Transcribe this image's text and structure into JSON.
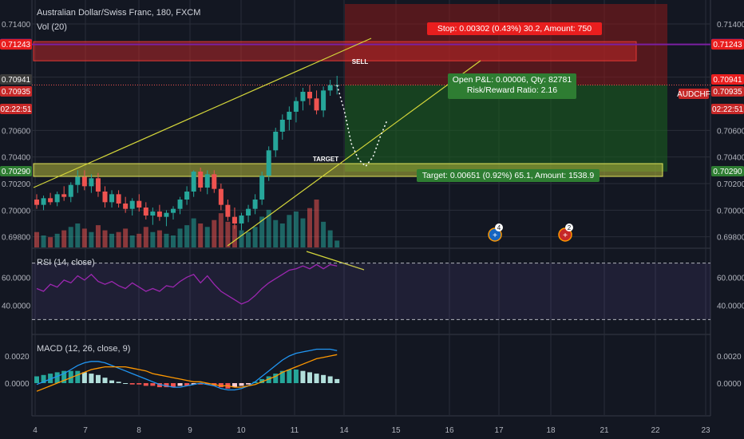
{
  "header": {
    "symbol_title": "Australian Dollar/Swiss Franc, 180, FXCM",
    "volume_label": "Vol (20)",
    "rsi_label": "RSI (14, close)",
    "macd_label": "MACD (12, 26, close, 9)"
  },
  "colors": {
    "bg": "#131722",
    "up": "#26a69a",
    "down": "#ef5350",
    "grid": "#2a2e39",
    "trendline": "#d4d63a",
    "stop_zone": "#8b1a1a",
    "profit_zone": "#1b5e20",
    "target_zone": "#b5b83a",
    "rsi_line": "#9c27b0",
    "macd_line": "#2196f3",
    "signal_line": "#ff9800",
    "purple_line": "#7b1fa2"
  },
  "annotations": {
    "stop_label": "Stop: 0.00302 (0.43%) 30.2, Amount: 750",
    "sell_label": "SELL",
    "target_zone_label": "TARGET",
    "pnl_line1": "Open P&L: 0.00006, Qty: 82781",
    "pnl_line2": "Risk/Reward Ratio: 2.16",
    "target_label": "Target: 0.00651 (0.92%) 65.1, Amount: 1538.9",
    "event_badge_1": "4",
    "event_badge_2": "2"
  },
  "price_scale": {
    "ticks_right": [
      "0.71400",
      "0.71000",
      "0.70600",
      "0.70400",
      "0.70200",
      "0.70000",
      "0.69800"
    ],
    "ticks_left": [
      "0.71400",
      "0.71000",
      "0.70600",
      "0.70400",
      "0.70200",
      "0.70000",
      "0.69800"
    ],
    "tags_right": [
      {
        "text": "0.71246",
        "price": 0.71246,
        "color": "#7b1fa2"
      },
      {
        "text": "0.71243",
        "price": 0.71243,
        "color": "#e91e1e"
      },
      {
        "text": "0.70941",
        "price": 0.70941,
        "color": "#e91e1e"
      },
      {
        "text": "0.70935",
        "price": 0.70935,
        "color": "#c62828"
      },
      {
        "text": "02:22:51",
        "price": 0.708,
        "color": "#c62828"
      },
      {
        "text": "0.70290",
        "price": 0.7029,
        "color": "#2e7d32"
      }
    ],
    "tags_left": [
      {
        "text": "0.71246",
        "price": 0.71246,
        "color": "#7b1fa2"
      },
      {
        "text": "0.71243",
        "price": 0.71243,
        "color": "#e91e1e"
      },
      {
        "text": "0.70941",
        "price": 0.70941,
        "color": "#3a3a3a"
      },
      {
        "text": "0.70935",
        "price": 0.70935,
        "color": "#c62828"
      },
      {
        "text": "02:22:51",
        "price": 0.708,
        "color": "#c62828"
      },
      {
        "text": "0.70290",
        "price": 0.7029,
        "color": "#2e7d32"
      }
    ],
    "symbol_tag": "AUDCHF"
  },
  "rsi_scale": [
    "60.0000",
    "40.0000"
  ],
  "macd_scale": [
    "0.0020",
    "0.0000"
  ],
  "x_axis": {
    "labels": [
      "4",
      "7",
      "8",
      "9",
      "10",
      "11",
      "14",
      "15",
      "16",
      "17",
      "18",
      "21",
      "22",
      "23"
    ]
  },
  "chart_data": {
    "type": "candlestick",
    "title": "Australian Dollar/Swiss Franc, 180, FXCM",
    "price_range": [
      0.6972,
      0.7155
    ],
    "key_levels": {
      "stop": 0.71243,
      "entry": 0.70941,
      "target": 0.7029,
      "purple_line": 0.71246
    },
    "candles": [
      [
        0.7008,
        0.7012,
        0.7001,
        0.7004
      ],
      [
        0.7004,
        0.7011,
        0.7,
        0.7009
      ],
      [
        0.7009,
        0.7013,
        0.7004,
        0.7006
      ],
      [
        0.7006,
        0.7014,
        0.7003,
        0.7012
      ],
      [
        0.7012,
        0.7018,
        0.7007,
        0.701
      ],
      [
        0.701,
        0.7021,
        0.7006,
        0.7019
      ],
      [
        0.7019,
        0.703,
        0.7013,
        0.7025
      ],
      [
        0.7025,
        0.703,
        0.7015,
        0.7018
      ],
      [
        0.7018,
        0.7027,
        0.7013,
        0.7024
      ],
      [
        0.7024,
        0.7028,
        0.701,
        0.7014
      ],
      [
        0.7014,
        0.7018,
        0.7002,
        0.7006
      ],
      [
        0.7006,
        0.7015,
        0.7002,
        0.7012
      ],
      [
        0.7012,
        0.7015,
        0.7002,
        0.7005
      ],
      [
        0.7005,
        0.701,
        0.6998,
        0.7001
      ],
      [
        0.7001,
        0.7009,
        0.6996,
        0.7007
      ],
      [
        0.7007,
        0.7012,
        0.6999,
        0.7002
      ],
      [
        0.7002,
        0.7006,
        0.6993,
        0.6996
      ],
      [
        0.6996,
        0.7002,
        0.6989,
        0.6999
      ],
      [
        0.6999,
        0.7004,
        0.6992,
        0.6995
      ],
      [
        0.6995,
        0.7,
        0.6988,
        0.6998
      ],
      [
        0.6998,
        0.7003,
        0.6993,
        0.7001
      ],
      [
        0.7001,
        0.701,
        0.6997,
        0.7008
      ],
      [
        0.7008,
        0.7018,
        0.7004,
        0.7014
      ],
      [
        0.7014,
        0.703,
        0.701,
        0.7029
      ],
      [
        0.7029,
        0.7032,
        0.7014,
        0.7017
      ],
      [
        0.7017,
        0.703,
        0.7012,
        0.7027
      ],
      [
        0.7027,
        0.703,
        0.7013,
        0.7016
      ],
      [
        0.7016,
        0.702,
        0.7,
        0.7004
      ],
      [
        0.7004,
        0.7008,
        0.6992,
        0.6995
      ],
      [
        0.6995,
        0.7002,
        0.6986,
        0.699
      ],
      [
        0.699,
        0.6998,
        0.6985,
        0.6996
      ],
      [
        0.6996,
        0.7004,
        0.6991,
        0.7001
      ],
      [
        0.7001,
        0.7012,
        0.6997,
        0.7008
      ],
      [
        0.7008,
        0.7029,
        0.7004,
        0.7026
      ],
      [
        0.7026,
        0.7048,
        0.7022,
        0.7045
      ],
      [
        0.7045,
        0.7062,
        0.704,
        0.7059
      ],
      [
        0.7059,
        0.7072,
        0.7053,
        0.7068
      ],
      [
        0.7068,
        0.7078,
        0.706,
        0.7074
      ],
      [
        0.7074,
        0.7085,
        0.7066,
        0.7082
      ],
      [
        0.7082,
        0.7092,
        0.7075,
        0.7089
      ],
      [
        0.7089,
        0.7094,
        0.7079,
        0.7084
      ],
      [
        0.7084,
        0.709,
        0.7072,
        0.7075
      ],
      [
        0.7075,
        0.7093,
        0.707,
        0.709
      ],
      [
        0.709,
        0.7098,
        0.7086,
        0.7094
      ],
      [
        0.7094,
        0.7101,
        0.7087,
        0.7094
      ]
    ],
    "volume": [
      9,
      7,
      6,
      8,
      10,
      12,
      14,
      11,
      9,
      13,
      10,
      8,
      9,
      11,
      7,
      8,
      12,
      9,
      10,
      8,
      7,
      11,
      13,
      17,
      14,
      12,
      16,
      20,
      15,
      13,
      10,
      9,
      12,
      18,
      22,
      16,
      14,
      19,
      21,
      17,
      23,
      28,
      15,
      10,
      4
    ],
    "projection_path": [
      [
        0.7094,
        0
      ],
      [
        0.7075,
        1
      ],
      [
        0.705,
        2
      ],
      [
        0.7038,
        3
      ],
      [
        0.7033,
        4
      ],
      [
        0.704,
        5
      ],
      [
        0.7055,
        6
      ],
      [
        0.7068,
        7
      ]
    ],
    "rsi": [
      52,
      50,
      55,
      53,
      58,
      56,
      61,
      58,
      62,
      57,
      55,
      57,
      54,
      52,
      56,
      53,
      50,
      52,
      50,
      54,
      53,
      57,
      60,
      62,
      56,
      61,
      55,
      50,
      47,
      44,
      41,
      43,
      47,
      52,
      56,
      59,
      62,
      65,
      66,
      68,
      66,
      69,
      66,
      69,
      68
    ],
    "macd": [
      -0.0001,
      0.0001,
      0.0003,
      0.0005,
      0.0007,
      0.001,
      0.0013,
      0.0015,
      0.0016,
      0.0016,
      0.0015,
      0.0013,
      0.0011,
      0.0009,
      0.0007,
      0.0005,
      0.0003,
      0.0001,
      -0.0001,
      -0.0002,
      -0.0003,
      -0.0003,
      -0.0002,
      -0.0001,
      0.0,
      -0.0001,
      -0.0002,
      -0.0004,
      -0.0005,
      -0.0005,
      -0.0004,
      -0.0002,
      0.0001,
      0.0005,
      0.0009,
      0.0013,
      0.0017,
      0.002,
      0.0022,
      0.0023,
      0.0024,
      0.0025,
      0.0025,
      0.0025,
      0.0024
    ],
    "signal": [
      -0.0006,
      -0.0004,
      -0.0002,
      0.0,
      0.0002,
      0.0004,
      0.0006,
      0.0008,
      0.001,
      0.0011,
      0.0012,
      0.0012,
      0.0012,
      0.0012,
      0.0011,
      0.001,
      0.0009,
      0.0007,
      0.0006,
      0.0005,
      0.0004,
      0.0003,
      0.0002,
      0.0001,
      0.0001,
      0.0,
      -0.0001,
      -0.0002,
      -0.0002,
      -0.0003,
      -0.0003,
      -0.0002,
      -0.0001,
      0.0001,
      0.0003,
      0.0005,
      0.0008,
      0.001,
      0.0012,
      0.0014,
      0.0016,
      0.0018,
      0.0019,
      0.002,
      0.0021
    ],
    "histogram": [
      0.0005,
      0.0006,
      0.0007,
      0.0008,
      0.0009,
      0.0009,
      0.0009,
      0.0008,
      0.0007,
      0.0006,
      0.0004,
      0.0002,
      0.0001,
      0.0,
      -0.0001,
      -0.0001,
      -0.0002,
      -0.0002,
      -0.0003,
      -0.0003,
      -0.0003,
      -0.0002,
      -0.0002,
      -0.0001,
      -0.0001,
      -0.0001,
      -0.0002,
      -0.0003,
      -0.0004,
      -0.0003,
      -0.0002,
      -0.0001,
      0.0001,
      0.0003,
      0.0005,
      0.0007,
      0.0009,
      0.001,
      0.001,
      0.0009,
      0.0008,
      0.0007,
      0.0006,
      0.0005,
      0.0003
    ]
  }
}
